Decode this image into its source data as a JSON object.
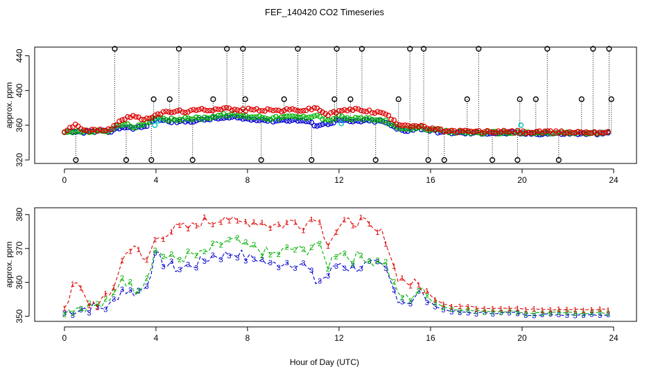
{
  "figure": {
    "title": "FEF_140420  CO2 Timeseries",
    "xlabel": "Hour of Day (UTC)"
  },
  "colors": {
    "series1": "#e00000",
    "series2": "#00b000",
    "series3": "#0000d0",
    "calibration": "#000000",
    "standard": "#00c0c0"
  },
  "chart_data": [
    {
      "type": "scatter",
      "panel": "top",
      "ylabel": "approx. ppm",
      "xlim": [
        -1.3,
        25.0
      ],
      "ylim": [
        316,
        450
      ],
      "xticks": [
        0,
        4,
        8,
        12,
        16,
        20,
        24
      ],
      "yticks": [
        320,
        360,
        400,
        440
      ],
      "marker": "circle",
      "calibration_hours": [
        0.5,
        2.2,
        2.7,
        3.8,
        3.9,
        4.6,
        5.0,
        5.6,
        6.5,
        7.1,
        7.8,
        7.9,
        8.6,
        9.6,
        10.2,
        10.8,
        11.8,
        11.9,
        12.5,
        13.0,
        13.6,
        14.6,
        15.1,
        15.7,
        15.9,
        16.6,
        17.6,
        18.1,
        18.7,
        19.8,
        19.9,
        20.6,
        21.1,
        21.6,
        22.6,
        23.1,
        23.8,
        23.9
      ],
      "calibration_values": [
        320,
        448,
        320,
        320,
        390,
        390,
        448,
        320,
        390,
        448,
        448,
        390,
        320,
        390,
        448,
        320,
        390,
        448,
        390,
        448,
        320,
        390,
        448,
        448,
        320,
        320,
        390,
        448,
        320,
        320,
        390,
        390,
        448,
        320,
        390,
        448,
        448,
        390
      ],
      "standard_points": [
        {
          "x": 3.95,
          "y": 360
        },
        {
          "x": 4.1,
          "y": 365
        },
        {
          "x": 12.1,
          "y": 362
        },
        {
          "x": 19.95,
          "y": 360
        }
      ]
    },
    {
      "type": "line",
      "panel": "bottom",
      "ylabel": "approx. ppm",
      "xlim": [
        -1.3,
        25.0
      ],
      "ylim": [
        348.5,
        382
      ],
      "xticks": [
        0,
        4,
        8,
        12,
        16,
        20,
        24
      ],
      "yticks": [
        350,
        360,
        370,
        380
      ],
      "series": [
        {
          "label": "1",
          "x": [
            0,
            0.5,
            1,
            1.5,
            2,
            2.5,
            3,
            3.5,
            4,
            4.5,
            5,
            5.5,
            6,
            6.5,
            7,
            7.5,
            8,
            8.5,
            9,
            9.5,
            10,
            10.5,
            11,
            11.5,
            12,
            12.5,
            13,
            13.5,
            14,
            14.5,
            15,
            15.5,
            16,
            16.5,
            17,
            17.5,
            18,
            18.5,
            19,
            19.5,
            19.8,
            20,
            20.5,
            21,
            21.5,
            22,
            22.5,
            23,
            23.5,
            23.8
          ],
          "values": [
            353,
            360,
            354,
            354,
            356,
            366,
            372,
            365,
            373,
            375,
            376,
            376,
            378,
            378,
            380,
            377,
            378,
            378,
            377,
            377,
            378,
            377,
            380,
            372,
            376,
            378,
            378,
            375,
            374,
            362,
            360,
            359,
            356,
            354,
            353,
            353,
            352.5,
            352.5,
            352.5,
            352.5,
            352.5,
            352,
            352,
            352,
            352,
            352,
            352,
            352,
            352,
            352
          ]
        },
        {
          "label": "2",
          "x": [
            0,
            0.5,
            1,
            1.5,
            2,
            2.5,
            3,
            3.5,
            4,
            4.5,
            5,
            5.5,
            6,
            6.5,
            7,
            7.5,
            8,
            8.5,
            9,
            9.5,
            10,
            10.5,
            11,
            11.5,
            12,
            12.5,
            13,
            13.5,
            14,
            14.5,
            15,
            15.5,
            16,
            16.5,
            17,
            17.5,
            18,
            18.5,
            19,
            19.5,
            19.8,
            20,
            20.5,
            21,
            21.5,
            22,
            22.5,
            23,
            23.5,
            23.8
          ],
          "values": [
            352,
            352.5,
            353,
            353,
            354,
            362,
            358,
            360,
            370,
            367,
            367,
            368,
            368,
            370,
            372,
            372,
            370,
            370,
            368,
            369,
            370,
            369,
            372,
            365,
            370,
            367,
            368,
            366,
            366,
            357,
            355,
            358,
            355,
            353,
            352,
            352,
            351.5,
            351.5,
            351.5,
            351.5,
            351.5,
            351,
            351,
            351,
            351,
            351,
            351,
            351,
            351,
            351
          ]
        },
        {
          "label": "3",
          "x": [
            0,
            0.5,
            1,
            1.5,
            2,
            2.5,
            3,
            3.5,
            4,
            4.5,
            5,
            5.5,
            6,
            6.5,
            7,
            7.5,
            8,
            8.5,
            9,
            9.5,
            10,
            10.5,
            11,
            11.5,
            12,
            12.5,
            13,
            13.5,
            14,
            14.5,
            15,
            15.5,
            16,
            16.5,
            17,
            17.5,
            18,
            18.5,
            19,
            19.5,
            19.8,
            20,
            20.5,
            21,
            21.5,
            22,
            22.5,
            23,
            23.5,
            23.8
          ],
          "values": [
            351,
            352,
            352.5,
            352.5,
            353,
            358,
            357,
            358,
            368,
            365,
            364,
            365,
            366,
            368,
            368,
            369,
            367,
            367,
            365,
            366,
            366,
            365,
            360,
            362,
            366,
            364,
            365,
            365,
            364,
            356,
            354,
            357,
            354,
            352,
            351.5,
            351,
            351,
            351,
            351,
            351,
            351,
            350.5,
            350.5,
            350.5,
            350.5,
            350.5,
            350.5,
            350.5,
            350.5,
            350.5
          ]
        }
      ]
    }
  ]
}
